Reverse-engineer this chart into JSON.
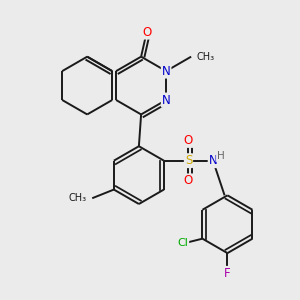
{
  "background_color": "#ebebeb",
  "bond_color": "#1a1a1a",
  "atom_colors": {
    "O": "#ff0000",
    "N": "#0000cc",
    "S": "#ccaa00",
    "Cl": "#00aa00",
    "F": "#aa00aa",
    "H": "#666666",
    "C": "#1a1a1a",
    "Me": "#1a1a1a"
  },
  "bond_width": 1.4,
  "font_size": 8.5,
  "figsize": [
    3.0,
    3.0
  ],
  "dpi": 100
}
